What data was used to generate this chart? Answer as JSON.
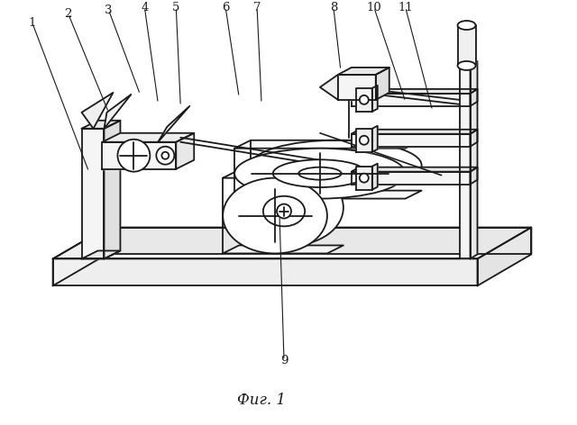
{
  "title": "Фиг. 1",
  "bg_color": "#ffffff",
  "line_color": "#1a1a1a",
  "lw": 1.3,
  "fig_width": 6.4,
  "fig_height": 4.72
}
